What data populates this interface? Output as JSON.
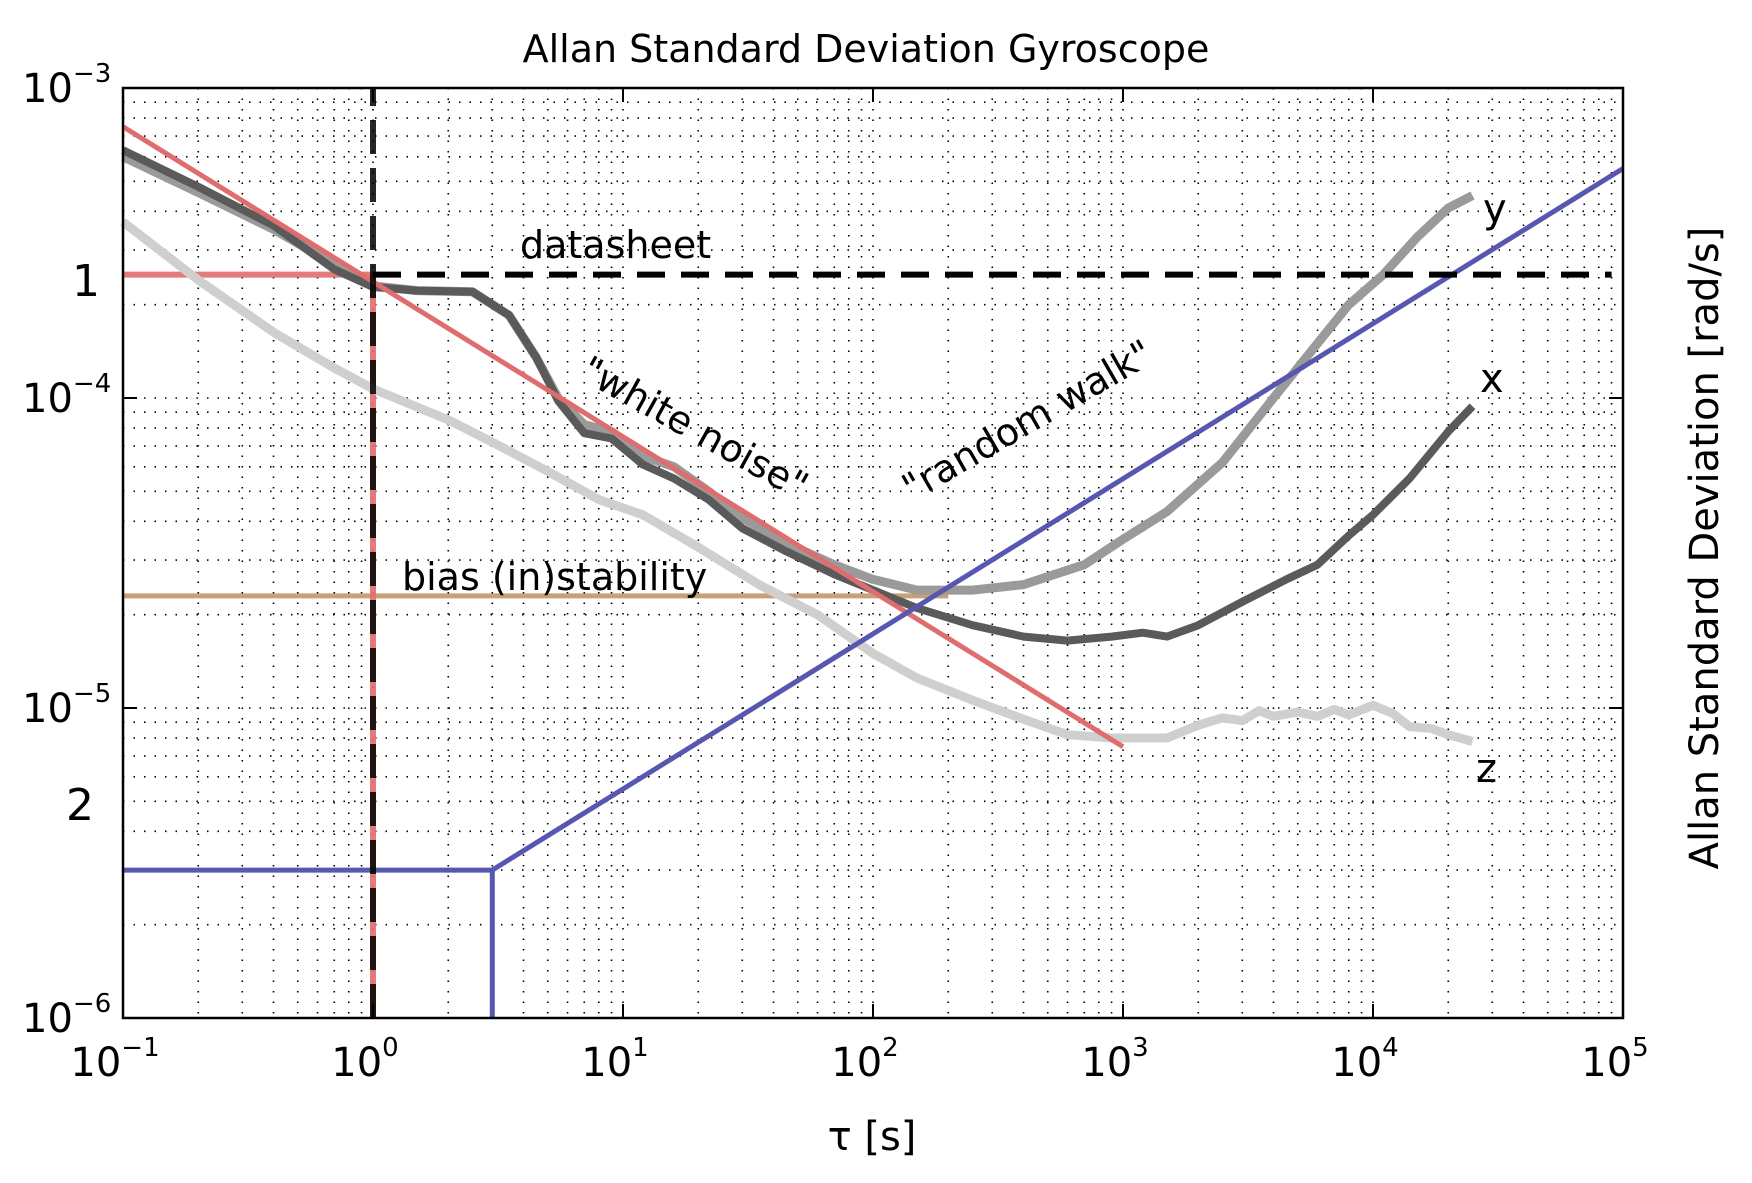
{
  "chart_data": {
    "type": "line",
    "title": "Allan Standard Deviation Gyroscope",
    "xlabel": "τ [s]",
    "ylabel": "Allan Standard Deviation [rad/s]",
    "xscale": "log",
    "yscale": "log",
    "xlim": [
      0.1,
      100000
    ],
    "ylim": [
      1e-06,
      0.001
    ],
    "grid": true,
    "x_ticks": [
      {
        "base": "10",
        "exp": "−1",
        "value": 0.1
      },
      {
        "base": "10",
        "exp": "0",
        "value": 1
      },
      {
        "base": "10",
        "exp": "1",
        "value": 10
      },
      {
        "base": "10",
        "exp": "2",
        "value": 100
      },
      {
        "base": "10",
        "exp": "3",
        "value": 1000
      },
      {
        "base": "10",
        "exp": "4",
        "value": 10000
      },
      {
        "base": "10",
        "exp": "5",
        "value": 100000
      }
    ],
    "y_ticks": [
      {
        "base": "10",
        "exp": "−3",
        "value": 0.001
      },
      {
        "base": "10",
        "exp": "−4",
        "value": 0.0001
      },
      {
        "base": "10",
        "exp": "−5",
        "value": 1e-05
      },
      {
        "base": "10",
        "exp": "−6",
        "value": 1e-06
      }
    ],
    "series": [
      {
        "name": "x",
        "color": "#5a5a5a",
        "points": [
          [
            0.1,
            0.00063
          ],
          [
            0.2,
            0.00048
          ],
          [
            0.4,
            0.00036
          ],
          [
            0.7,
            0.00026
          ],
          [
            1,
            0.000228
          ],
          [
            1.5,
            0.000222
          ],
          [
            2.5,
            0.00022
          ],
          [
            3.5,
            0.000185
          ],
          [
            4.5,
            0.000135
          ],
          [
            5.5,
            9.8e-05
          ],
          [
            7,
            7.7e-05
          ],
          [
            9,
            7.4e-05
          ],
          [
            12,
            6.1e-05
          ],
          [
            16,
            5.5e-05
          ],
          [
            22,
            4.7e-05
          ],
          [
            30,
            3.8e-05
          ],
          [
            45,
            3.2e-05
          ],
          [
            70,
            2.7e-05
          ],
          [
            100,
            2.4e-05
          ],
          [
            150,
            2.1e-05
          ],
          [
            250,
            1.85e-05
          ],
          [
            400,
            1.7e-05
          ],
          [
            600,
            1.65e-05
          ],
          [
            900,
            1.7e-05
          ],
          [
            1200,
            1.75e-05
          ],
          [
            1500,
            1.7e-05
          ],
          [
            2000,
            1.85e-05
          ],
          [
            3000,
            2.2e-05
          ],
          [
            4500,
            2.6e-05
          ],
          [
            6000,
            2.9e-05
          ],
          [
            8000,
            3.6e-05
          ],
          [
            10000,
            4.2e-05
          ],
          [
            14000,
            5.5e-05
          ],
          [
            20000,
            7.8e-05
          ],
          [
            25000,
            9.4e-05
          ]
        ]
      },
      {
        "name": "y",
        "color": "#9a9a9a",
        "points": [
          [
            0.1,
            0.0006
          ],
          [
            0.2,
            0.00046
          ],
          [
            0.4,
            0.00035
          ],
          [
            0.7,
            0.00027
          ],
          [
            1,
            0.00023
          ],
          [
            1.5,
            0.000222
          ],
          [
            2.5,
            0.00022
          ],
          [
            3.5,
            0.000185
          ],
          [
            4.5,
            0.000135
          ],
          [
            5.5,
            0.0001
          ],
          [
            7,
            8.2e-05
          ],
          [
            9,
            7.8e-05
          ],
          [
            12,
            6.5e-05
          ],
          [
            16,
            6e-05
          ],
          [
            22,
            5e-05
          ],
          [
            30,
            4.1e-05
          ],
          [
            45,
            3.4e-05
          ],
          [
            70,
            2.9e-05
          ],
          [
            100,
            2.6e-05
          ],
          [
            150,
            2.4e-05
          ],
          [
            250,
            2.4e-05
          ],
          [
            400,
            2.5e-05
          ],
          [
            700,
            2.9e-05
          ],
          [
            1000,
            3.5e-05
          ],
          [
            1500,
            4.3e-05
          ],
          [
            2500,
            6.2e-05
          ],
          [
            4000,
            0.0001
          ],
          [
            6000,
            0.00015
          ],
          [
            8000,
            0.0002
          ],
          [
            11000,
            0.00025
          ],
          [
            15000,
            0.00033
          ],
          [
            20000,
            0.00041
          ],
          [
            25000,
            0.00045
          ]
        ]
      },
      {
        "name": "z",
        "color": "#cfcfcf",
        "points": [
          [
            0.1,
            0.00037
          ],
          [
            0.2,
            0.00024
          ],
          [
            0.4,
            0.000163
          ],
          [
            0.7,
            0.000125
          ],
          [
            1,
            0.000107
          ],
          [
            2,
            8.5e-05
          ],
          [
            3,
            7.2e-05
          ],
          [
            5,
            5.8e-05
          ],
          [
            8,
            4.7e-05
          ],
          [
            12,
            4.2e-05
          ],
          [
            20,
            3.3e-05
          ],
          [
            35,
            2.5e-05
          ],
          [
            60,
            2e-05
          ],
          [
            100,
            1.5e-05
          ],
          [
            150,
            1.25e-05
          ],
          [
            250,
            1.06e-05
          ],
          [
            400,
            9.2e-06
          ],
          [
            600,
            8.2e-06
          ],
          [
            900,
            8e-06
          ],
          [
            1200,
            8e-06
          ],
          [
            1500,
            8e-06
          ],
          [
            2000,
            8.8e-06
          ],
          [
            2500,
            9.3e-06
          ],
          [
            3000,
            9.1e-06
          ],
          [
            3500,
            9.8e-06
          ],
          [
            4000,
            9.4e-06
          ],
          [
            5000,
            9.7e-06
          ],
          [
            6000,
            9.4e-06
          ],
          [
            7000,
            9.9e-06
          ],
          [
            8000,
            9.5e-06
          ],
          [
            10000,
            1.02e-05
          ],
          [
            12000,
            9.6e-06
          ],
          [
            14000,
            8.7e-06
          ],
          [
            17000,
            8.6e-06
          ],
          [
            20000,
            8.2e-06
          ],
          [
            25000,
            7.8e-06
          ]
        ]
      },
      {
        "name": "white noise fit",
        "color": "#e06d6d",
        "points": [
          [
            0.1,
            0.00075
          ],
          [
            1000,
            7.5e-06
          ]
        ]
      },
      {
        "name": "random walk fit",
        "color": "#5757b0",
        "points": [
          [
            3,
            3e-06
          ],
          [
            100000,
            0.00055
          ]
        ]
      },
      {
        "name": "bias (in)stability level",
        "color": "#c8a078",
        "points": [
          [
            0.1,
            2.3e-05
          ],
          [
            200,
            2.3e-05
          ]
        ]
      },
      {
        "name": "datasheet level",
        "color": "#000000",
        "dash": true,
        "points": [
          [
            1,
            0.00025
          ],
          [
            90000,
            0.00025
          ]
        ]
      }
    ],
    "guides": [
      {
        "kind": "hline",
        "color": "#e06d6d",
        "from": [
          0.1,
          0.00025
        ],
        "to": [
          1,
          0.00025
        ]
      },
      {
        "kind": "vline",
        "color": "#e06d6d",
        "from": [
          1,
          1e-06
        ],
        "to": [
          1,
          0.00025
        ]
      },
      {
        "kind": "vline-dash",
        "color": "#000000",
        "from": [
          1,
          1e-06
        ],
        "to": [
          1,
          0.001
        ]
      },
      {
        "kind": "hline",
        "color": "#5757b0",
        "from": [
          0.1,
          3e-06
        ],
        "to": [
          3,
          3e-06
        ]
      },
      {
        "kind": "vline",
        "color": "#5757b0",
        "from": [
          3,
          1e-06
        ],
        "to": [
          3,
          3e-06
        ]
      }
    ],
    "annotations": {
      "datasheet": "datasheet",
      "white_noise": "\"white noise\"",
      "random_walk": "\"random walk\"",
      "bias": "bias (in)stability",
      "marker_1": "1",
      "marker_2": "2",
      "label_x": "x",
      "label_y": "y",
      "label_z": "z"
    }
  }
}
